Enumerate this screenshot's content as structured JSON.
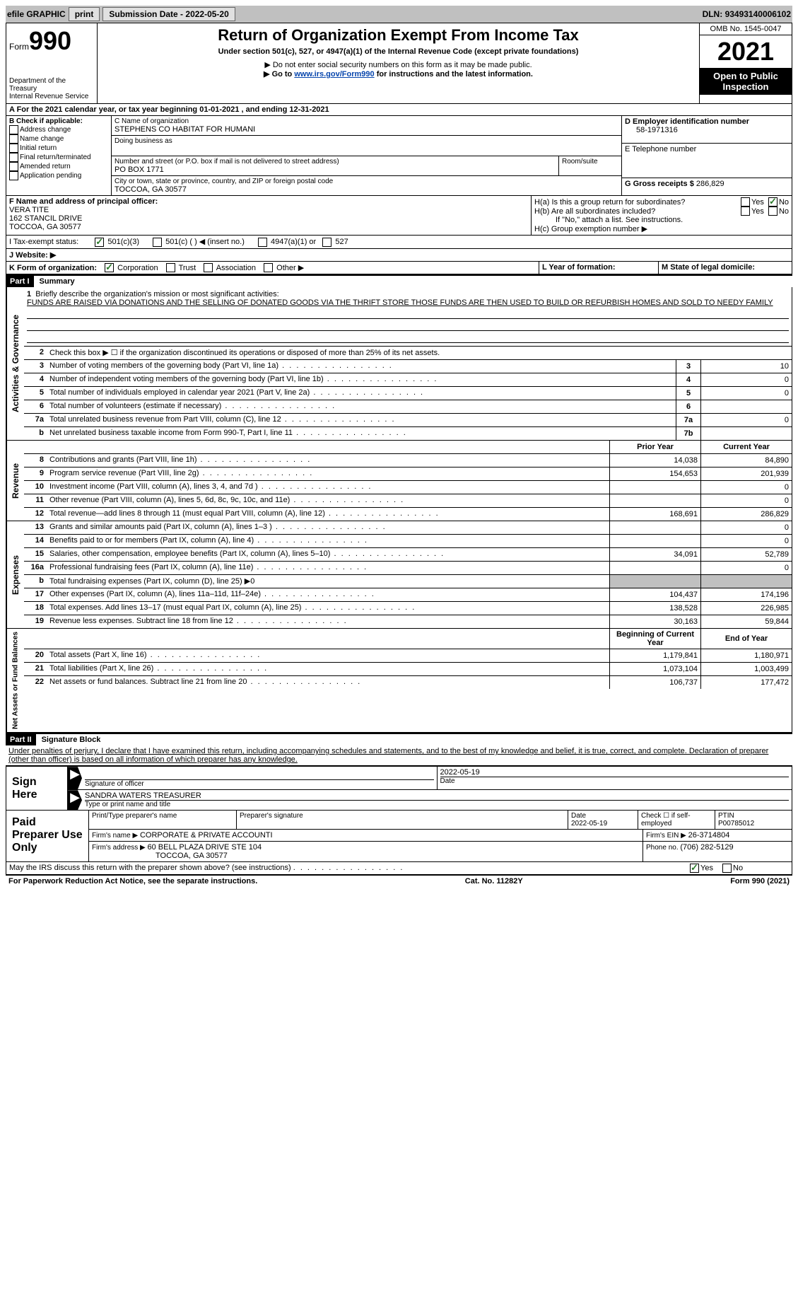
{
  "topbar": {
    "efile": "efile GRAPHIC",
    "print": "print",
    "submission_label": "Submission Date - ",
    "submission_date": "2022-05-20",
    "dln_label": "DLN: ",
    "dln": "93493140006102"
  },
  "header": {
    "form_label": "Form",
    "form_number": "990",
    "dept": "Department of the Treasury",
    "irs": "Internal Revenue Service",
    "title": "Return of Organization Exempt From Income Tax",
    "subtitle": "Under section 501(c), 527, or 4947(a)(1) of the Internal Revenue Code (except private foundations)",
    "note1": "▶ Do not enter social security numbers on this form as it may be made public.",
    "note2_pre": "▶ Go to ",
    "note2_link": "www.irs.gov/Form990",
    "note2_post": " for instructions and the latest information.",
    "omb": "OMB No. 1545-0047",
    "year": "2021",
    "inspection": "Open to Public Inspection"
  },
  "section_a": {
    "text": "A For the 2021 calendar year, or tax year beginning ",
    "begin": "01-01-2021",
    "mid": " , and ending ",
    "end": "12-31-2021"
  },
  "section_b": {
    "label": "B Check if applicable:",
    "items": [
      "Address change",
      "Name change",
      "Initial return",
      "Final return/terminated",
      "Amended return",
      "Application pending"
    ]
  },
  "section_c": {
    "name_label": "C Name of organization",
    "name": "STEPHENS CO HABITAT FOR HUMANI",
    "dba_label": "Doing business as",
    "addr_label": "Number and street (or P.O. box if mail is not delivered to street address)",
    "room_label": "Room/suite",
    "addr": "PO BOX 1771",
    "city_label": "City or town, state or province, country, and ZIP or foreign postal code",
    "city": "TOCCOA, GA  30577"
  },
  "section_d": {
    "label": "D Employer identification number",
    "ein": "58-1971316",
    "phone_label": "E Telephone number",
    "gross_label": "G Gross receipts $ ",
    "gross": "286,829"
  },
  "section_f": {
    "label": "F Name and address of principal officer:",
    "name": "VERA TITE",
    "addr1": "162 STANCIL DRIVE",
    "addr2": "TOCCOA, GA  30577"
  },
  "section_h": {
    "a_label": "H(a)  Is this a group return for subordinates?",
    "b_label": "H(b)  Are all subordinates included?",
    "b_note": "If \"No,\" attach a list. See instructions.",
    "c_label": "H(c)  Group exemption number ▶",
    "yes": "Yes",
    "no": "No"
  },
  "section_i": {
    "label": "I   Tax-exempt status:",
    "opt1": "501(c)(3)",
    "opt2": "501(c) (  ) ◀ (insert no.)",
    "opt3": "4947(a)(1) or",
    "opt4": "527"
  },
  "section_j": {
    "label": "J   Website: ▶"
  },
  "section_k": {
    "label": "K Form of organization:",
    "corp": "Corporation",
    "trust": "Trust",
    "assoc": "Association",
    "other": "Other ▶"
  },
  "section_l": {
    "label": "L Year of formation:"
  },
  "section_m": {
    "label": "M State of legal domicile:"
  },
  "part1": {
    "header": "Part I",
    "title": "Summary",
    "vlabel_gov": "Activities & Governance",
    "vlabel_rev": "Revenue",
    "vlabel_exp": "Expenses",
    "vlabel_net": "Net Assets or Fund Balances",
    "line1_label": "Briefly describe the organization's mission or most significant activities:",
    "line1_text": "FUNDS ARE RAISED VIA DONATIONS AND THE SELLING OF DONATED GOODS VIA THE THRIFT STORE THOSE FUNDS ARE THEN USED TO BUILD OR REFURBISH HOMES AND SOLD TO NEEDY FAMILY",
    "line2": "Check this box ▶ ☐ if the organization discontinued its operations or disposed of more than 25% of its net assets.",
    "lines": [
      {
        "n": "3",
        "label": "Number of voting members of the governing body (Part VI, line 1a)",
        "box": "3",
        "val": "10"
      },
      {
        "n": "4",
        "label": "Number of independent voting members of the governing body (Part VI, line 1b)",
        "box": "4",
        "val": "0"
      },
      {
        "n": "5",
        "label": "Total number of individuals employed in calendar year 2021 (Part V, line 2a)",
        "box": "5",
        "val": "0"
      },
      {
        "n": "6",
        "label": "Total number of volunteers (estimate if necessary)",
        "box": "6",
        "val": ""
      },
      {
        "n": "7a",
        "label": "Total unrelated business revenue from Part VIII, column (C), line 12",
        "box": "7a",
        "val": "0"
      },
      {
        "n": "b",
        "label": "Net unrelated business taxable income from Form 990-T, Part I, line 11",
        "box": "7b",
        "val": ""
      }
    ],
    "col_prior": "Prior Year",
    "col_current": "Current Year",
    "col_begin": "Beginning of Current Year",
    "col_end": "End of Year",
    "rev_lines": [
      {
        "n": "8",
        "label": "Contributions and grants (Part VIII, line 1h)",
        "prior": "14,038",
        "curr": "84,890"
      },
      {
        "n": "9",
        "label": "Program service revenue (Part VIII, line 2g)",
        "prior": "154,653",
        "curr": "201,939"
      },
      {
        "n": "10",
        "label": "Investment income (Part VIII, column (A), lines 3, 4, and 7d )",
        "prior": "",
        "curr": "0"
      },
      {
        "n": "11",
        "label": "Other revenue (Part VIII, column (A), lines 5, 6d, 8c, 9c, 10c, and 11e)",
        "prior": "",
        "curr": "0"
      },
      {
        "n": "12",
        "label": "Total revenue—add lines 8 through 11 (must equal Part VIII, column (A), line 12)",
        "prior": "168,691",
        "curr": "286,829"
      }
    ],
    "exp_lines": [
      {
        "n": "13",
        "label": "Grants and similar amounts paid (Part IX, column (A), lines 1–3 )",
        "prior": "",
        "curr": "0"
      },
      {
        "n": "14",
        "label": "Benefits paid to or for members (Part IX, column (A), line 4)",
        "prior": "",
        "curr": "0"
      },
      {
        "n": "15",
        "label": "Salaries, other compensation, employee benefits (Part IX, column (A), lines 5–10)",
        "prior": "34,091",
        "curr": "52,789"
      },
      {
        "n": "16a",
        "label": "Professional fundraising fees (Part IX, column (A), line 11e)",
        "prior": "",
        "curr": "0"
      },
      {
        "n": "b",
        "label": "Total fundraising expenses (Part IX, column (D), line 25) ▶0",
        "prior": "SHADED",
        "curr": "SHADED"
      },
      {
        "n": "17",
        "label": "Other expenses (Part IX, column (A), lines 11a–11d, 11f–24e)",
        "prior": "104,437",
        "curr": "174,196"
      },
      {
        "n": "18",
        "label": "Total expenses. Add lines 13–17 (must equal Part IX, column (A), line 25)",
        "prior": "138,528",
        "curr": "226,985"
      },
      {
        "n": "19",
        "label": "Revenue less expenses. Subtract line 18 from line 12",
        "prior": "30,163",
        "curr": "59,844"
      }
    ],
    "net_lines": [
      {
        "n": "20",
        "label": "Total assets (Part X, line 16)",
        "prior": "1,179,841",
        "curr": "1,180,971"
      },
      {
        "n": "21",
        "label": "Total liabilities (Part X, line 26)",
        "prior": "1,073,104",
        "curr": "1,003,499"
      },
      {
        "n": "22",
        "label": "Net assets or fund balances. Subtract line 21 from line 20",
        "prior": "106,737",
        "curr": "177,472"
      }
    ]
  },
  "part2": {
    "header": "Part II",
    "title": "Signature Block",
    "penalty": "Under penalties of perjury, I declare that I have examined this return, including accompanying schedules and statements, and to the best of my knowledge and belief, it is true, correct, and complete. Declaration of preparer (other than officer) is based on all information of which preparer has any knowledge.",
    "sign_here": "Sign Here",
    "sig_officer": "Signature of officer",
    "sig_date": "2022-05-19",
    "date_label": "Date",
    "officer_name": "SANDRA WATERS  TREASURER",
    "type_name": "Type or print name and title",
    "paid_prep": "Paid Preparer Use Only",
    "prep_name_label": "Print/Type preparer's name",
    "prep_sig_label": "Preparer's signature",
    "prep_date": "2022-05-19",
    "check_self": "Check ☐ if self-employed",
    "ptin_label": "PTIN",
    "ptin": "P00785012",
    "firm_name_label": "Firm's name    ▶ ",
    "firm_name": "CORPORATE & PRIVATE ACCOUNTI",
    "firm_ein_label": "Firm's EIN ▶ ",
    "firm_ein": "26-3714804",
    "firm_addr_label": "Firm's address ▶ ",
    "firm_addr1": "60 BELL PLAZA DRIVE STE 104",
    "firm_addr2": "TOCCOA, GA  30577",
    "phone_label": "Phone no. ",
    "phone": "(706) 282-5129",
    "may_discuss": "May the IRS discuss this return with the preparer shown above? (see instructions)",
    "yes": "Yes",
    "no": "No"
  },
  "footer": {
    "pra": "For Paperwork Reduction Act Notice, see the separate instructions.",
    "cat": "Cat. No. 11282Y",
    "form": "Form 990 (2021)"
  }
}
